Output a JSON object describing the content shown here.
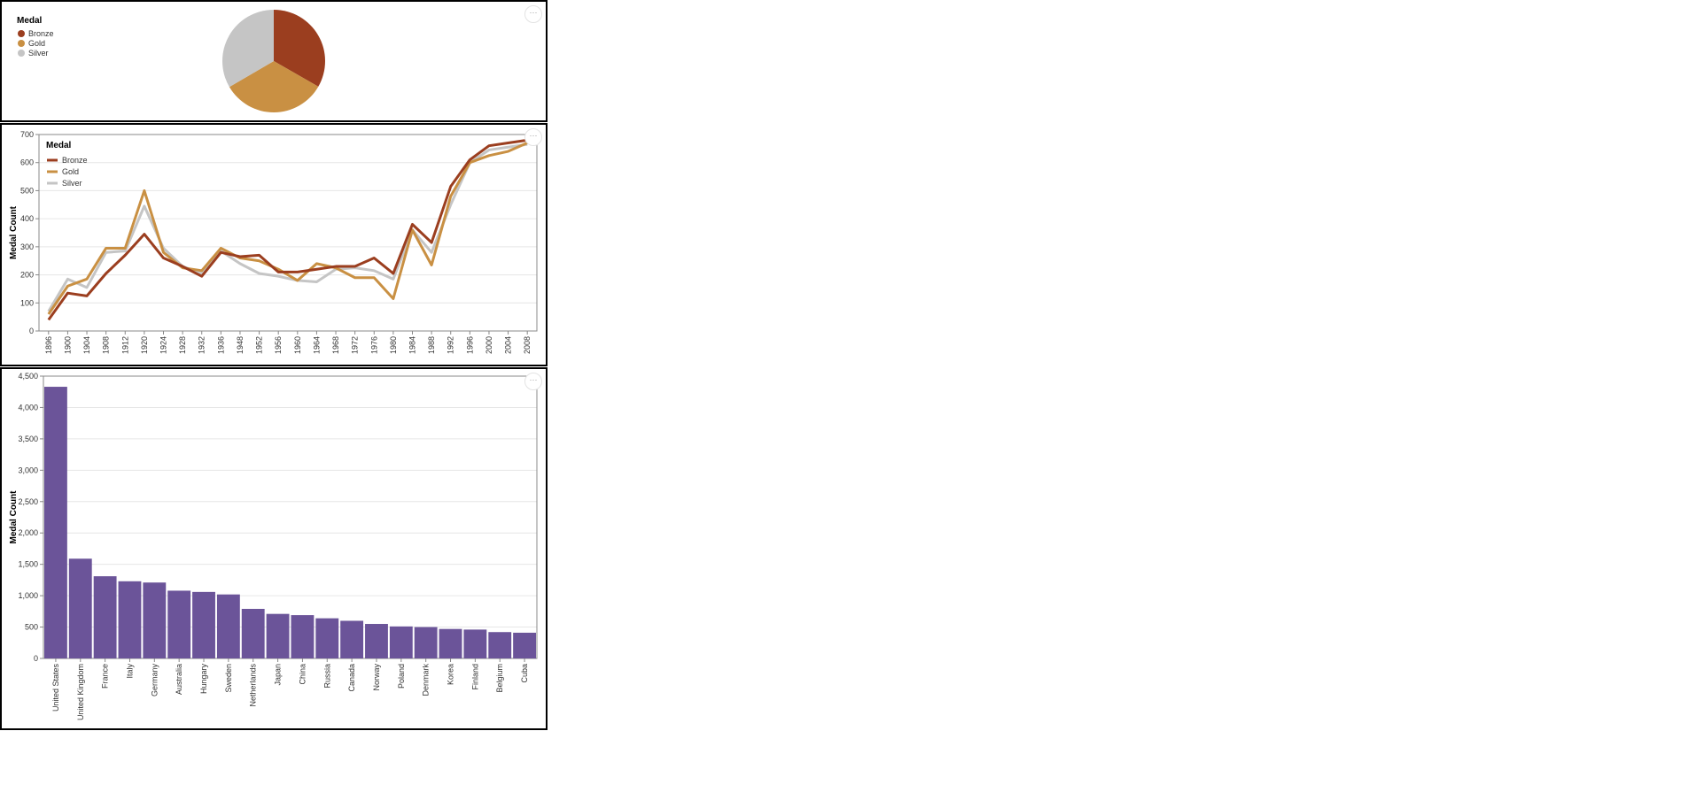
{
  "menu_label": "···",
  "colors": {
    "Bronze": "#9b3e1f",
    "Gold": "#c99043",
    "Silver": "#c5c5c5",
    "bar": "#6b5499"
  },
  "chart_data": [
    {
      "type": "pie",
      "legend_title": "Medal",
      "legend_position": "top-left",
      "categories": [
        "Bronze",
        "Gold",
        "Silver"
      ],
      "values": [
        33.3,
        33.3,
        33.4
      ]
    },
    {
      "type": "line",
      "legend_title": "Medal",
      "legend_position": "top-left",
      "ylabel": "Medal Count",
      "ylim": [
        0,
        700
      ],
      "yticks": [
        "0",
        "100",
        "200",
        "300",
        "400",
        "500",
        "600",
        "700"
      ],
      "grid": true,
      "x": [
        "1896",
        "1900",
        "1904",
        "1908",
        "1912",
        "1920",
        "1924",
        "1928",
        "1932",
        "1936",
        "1948",
        "1952",
        "1956",
        "1960",
        "1964",
        "1968",
        "1972",
        "1976",
        "1980",
        "1984",
        "1988",
        "1992",
        "1996",
        "2000",
        "2004",
        "2008"
      ],
      "series": [
        {
          "name": "Bronze",
          "values": [
            40,
            135,
            125,
            205,
            270,
            345,
            260,
            230,
            195,
            280,
            265,
            270,
            210,
            210,
            220,
            230,
            230,
            260,
            205,
            380,
            315,
            515,
            610,
            660,
            670,
            680
          ]
        },
        {
          "name": "Gold",
          "values": [
            60,
            160,
            185,
            295,
            295,
            500,
            280,
            225,
            215,
            295,
            260,
            250,
            220,
            180,
            240,
            225,
            190,
            190,
            115,
            360,
            235,
            480,
            600,
            625,
            640,
            670
          ]
        },
        {
          "name": "Silver",
          "values": [
            70,
            185,
            155,
            280,
            285,
            445,
            295,
            230,
            205,
            285,
            240,
            205,
            195,
            180,
            175,
            220,
            225,
            215,
            185,
            360,
            280,
            450,
            600,
            645,
            655,
            665
          ]
        }
      ]
    },
    {
      "type": "bar",
      "ylabel": "Medal Count",
      "ylim": [
        0,
        4500
      ],
      "yticks": [
        "0",
        "500",
        "1,000",
        "1,500",
        "2,000",
        "2,500",
        "3,000",
        "3,500",
        "4,000",
        "4,500"
      ],
      "grid": true,
      "categories": [
        "United States",
        "United Kingdom",
        "France",
        "Italy",
        "Germany",
        "Australia",
        "Hungary",
        "Sweden",
        "Netherlands",
        "Japan",
        "China",
        "Russia",
        "Canada",
        "Norway",
        "Poland",
        "Denmark",
        "Korea",
        "Finland",
        "Belgium",
        "Cuba"
      ],
      "values": [
        4330,
        1590,
        1310,
        1230,
        1210,
        1080,
        1060,
        1020,
        790,
        710,
        690,
        640,
        600,
        550,
        510,
        500,
        470,
        460,
        420,
        410
      ]
    }
  ]
}
